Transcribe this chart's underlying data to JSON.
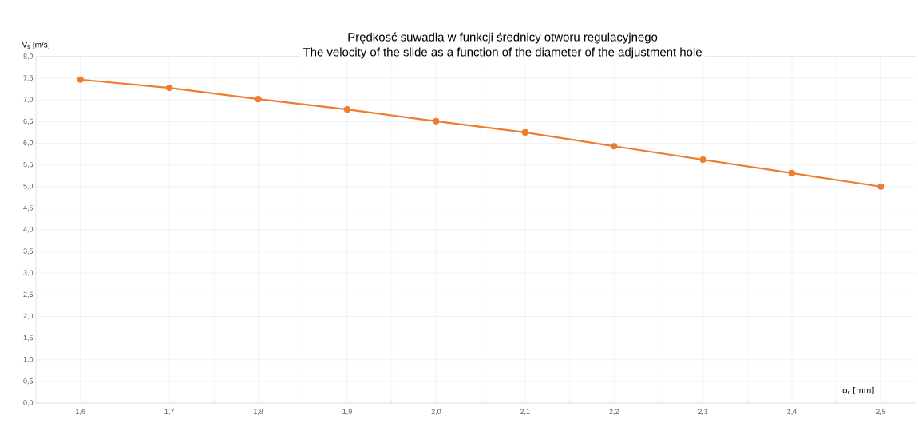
{
  "chart_data": {
    "type": "line",
    "title": "Prędkosć suwadła w funkcji średnicy otworu regulacyjnego",
    "subtitle": "The velocity of the slide as a function of the diameter of the adjustment hole",
    "xlabel": "ϕ$_{r}$ [mm]",
    "ylabel": "V$_{s}$ [m/s]",
    "x": [
      1.6,
      1.7,
      1.8,
      1.9,
      2.0,
      2.1,
      2.2,
      2.3,
      2.4,
      2.5
    ],
    "series": [
      {
        "color": "#ed7d31",
        "values": [
          7.47,
          7.28,
          7.02,
          6.78,
          6.51,
          6.25,
          5.93,
          5.62,
          5.31,
          5.0
        ]
      }
    ],
    "xlim": [
      1.55,
      2.54
    ],
    "ylim": [
      0,
      8
    ],
    "xticks": [
      {
        "value": 1.6,
        "label": "1,6"
      },
      {
        "value": 1.7,
        "label": "1,7"
      },
      {
        "value": 1.8,
        "label": "1,8"
      },
      {
        "value": 1.9,
        "label": "1,9"
      },
      {
        "value": 2.0,
        "label": "2,0"
      },
      {
        "value": 2.1,
        "label": "2,1"
      },
      {
        "value": 2.2,
        "label": "2,2"
      },
      {
        "value": 2.3,
        "label": "2,3"
      },
      {
        "value": 2.4,
        "label": "2,4"
      },
      {
        "value": 2.5,
        "label": "2,5"
      }
    ],
    "yticks": [
      {
        "value": 0,
        "label": "0,0"
      },
      {
        "value": 0.5,
        "label": "0,5"
      },
      {
        "value": 1,
        "label": "1,0"
      },
      {
        "value": 1.5,
        "label": "1,5"
      },
      {
        "value": 2,
        "label": "2,0"
      },
      {
        "value": 2.5,
        "label": "2,5"
      },
      {
        "value": 3,
        "label": "3,0"
      },
      {
        "value": 3.5,
        "label": "3,5"
      },
      {
        "value": 4,
        "label": "4,0"
      },
      {
        "value": 4.5,
        "label": "4,5"
      },
      {
        "value": 5,
        "label": "5,0"
      },
      {
        "value": 5.5,
        "label": "5,5"
      },
      {
        "value": 6,
        "label": "6,0"
      },
      {
        "value": 6.5,
        "label": "6,5"
      },
      {
        "value": 7,
        "label": "7,0"
      },
      {
        "value": 7.5,
        "label": "7,5"
      },
      {
        "value": 8,
        "label": "8,0"
      }
    ],
    "grid": true,
    "marker": "circle",
    "line_style": "solid"
  }
}
